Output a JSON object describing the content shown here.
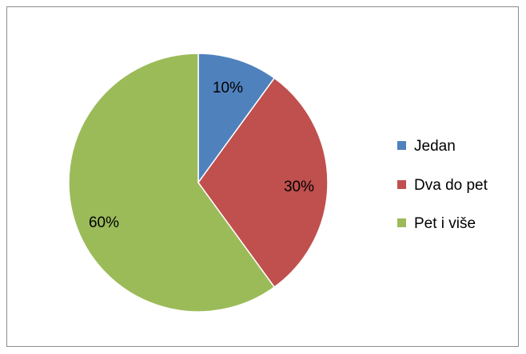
{
  "chart_data": {
    "type": "pie",
    "categories": [
      "Jedan",
      "Dva do pet",
      "Pet i više"
    ],
    "values": [
      10,
      30,
      60
    ],
    "data_labels": [
      "10%",
      "30%",
      "60%"
    ],
    "colors": [
      "#4f81bd",
      "#c0504d",
      "#9bbb59"
    ],
    "start_angle_deg": 0,
    "direction": "clockwise",
    "legend": {
      "placement": "right",
      "entries": [
        "Jedan",
        "Dva do pet",
        "Pet i više"
      ]
    },
    "slice_border_color": "#ffffff"
  }
}
